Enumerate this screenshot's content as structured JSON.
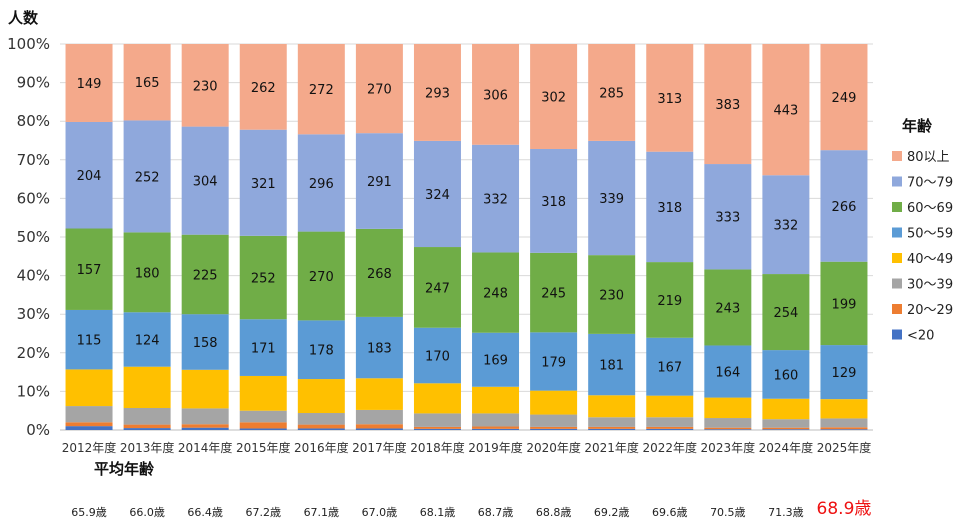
{
  "chart_data": {
    "type": "bar",
    "stacked": true,
    "normalized": true,
    "ylabel": "人数",
    "ylim": [
      0,
      100
    ],
    "yticks": [
      "0%",
      "10%",
      "20%",
      "30%",
      "40%",
      "50%",
      "60%",
      "70%",
      "80%",
      "90%",
      "100%"
    ],
    "grid": true,
    "legend_title": "年齢",
    "legend_position": "right",
    "categories": [
      "2012年度",
      "2013年度",
      "2014年度",
      "2015年度",
      "2016年度",
      "2017年度",
      "2018年度",
      "2019年度",
      "2020年度",
      "2021年度",
      "2022年度",
      "2023年度",
      "2024年度",
      "2025年度"
    ],
    "series": [
      {
        "name": "<20",
        "color": "#4472c4",
        "values": [
          1.0,
          0.5,
          0.6,
          0.4,
          0.4,
          0.4,
          0.3,
          0.3,
          0.3,
          0.3,
          0.3,
          0.2,
          0.2,
          0.2
        ]
      },
      {
        "name": "20～29",
        "color": "#ed7d31",
        "values": [
          1.0,
          0.9,
          0.9,
          1.6,
          1.0,
          1.1,
          0.5,
          0.6,
          0.5,
          0.5,
          0.5,
          0.4,
          0.4,
          0.5
        ]
      },
      {
        "name": "30～39",
        "color": "#a5a5a5",
        "values": [
          4.2,
          4.3,
          4.1,
          3.0,
          3.0,
          3.7,
          3.5,
          3.4,
          3.2,
          2.5,
          2.5,
          2.5,
          2.2,
          2.3
        ]
      },
      {
        "name": "40～49",
        "color": "#ffc000",
        "values": [
          9.5,
          10.7,
          10.0,
          9.0,
          8.8,
          8.2,
          7.8,
          6.9,
          6.2,
          5.7,
          5.6,
          5.3,
          5.3,
          5.0
        ]
      },
      {
        "name": "50～59",
        "color": "#5b9bd5",
        "values": [
          15.4,
          14.1,
          14.4,
          14.7,
          15.2,
          15.9,
          14.4,
          14.0,
          15.1,
          15.9,
          15.0,
          13.5,
          12.6,
          14.0
        ]
      },
      {
        "name": "60～69",
        "color": "#70ad47",
        "values": [
          21.1,
          20.7,
          20.6,
          21.6,
          23.0,
          22.8,
          20.9,
          20.8,
          20.6,
          20.4,
          19.6,
          19.7,
          19.7,
          21.6
        ]
      },
      {
        "name": "70～79",
        "color": "#8fa8dc",
        "values": [
          27.6,
          29.0,
          28.0,
          27.5,
          25.2,
          24.8,
          27.5,
          27.9,
          26.9,
          29.6,
          28.6,
          27.3,
          25.6,
          28.9
        ]
      },
      {
        "name": "80以上",
        "color": "#f4a98b",
        "values": [
          20.2,
          19.8,
          21.4,
          22.2,
          23.4,
          23.1,
          25.1,
          26.1,
          27.2,
          25.1,
          27.9,
          31.1,
          34.0,
          27.5
        ]
      }
    ],
    "data_labels": {
      "50～59": [
        "115",
        "124",
        "158",
        "171",
        "178",
        "183",
        "170",
        "169",
        "179",
        "181",
        "167",
        "164",
        "160",
        "129"
      ],
      "60～69": [
        "157",
        "180",
        "225",
        "252",
        "270",
        "268",
        "247",
        "248",
        "245",
        "230",
        "219",
        "243",
        "254",
        "199"
      ],
      "70～79": [
        "204",
        "252",
        "304",
        "321",
        "296",
        "291",
        "324",
        "332",
        "318",
        "339",
        "318",
        "333",
        "332",
        "266"
      ],
      "80以上": [
        "149",
        "165",
        "230",
        "262",
        "272",
        "270",
        "293",
        "306",
        "302",
        "285",
        "313",
        "383",
        "443",
        "249"
      ]
    },
    "average_age_title": "平均年齢",
    "average_age": [
      "65.9歳",
      "66.0歳",
      "66.4歳",
      "67.2歳",
      "67.1歳",
      "67.0歳",
      "68.1歳",
      "68.7歳",
      "68.8歳",
      "69.2歳",
      "69.6歳",
      "70.5歳",
      "71.3歳",
      "68.9歳"
    ],
    "average_highlight_index": 13,
    "average_highlight_color": "#ee1111"
  }
}
